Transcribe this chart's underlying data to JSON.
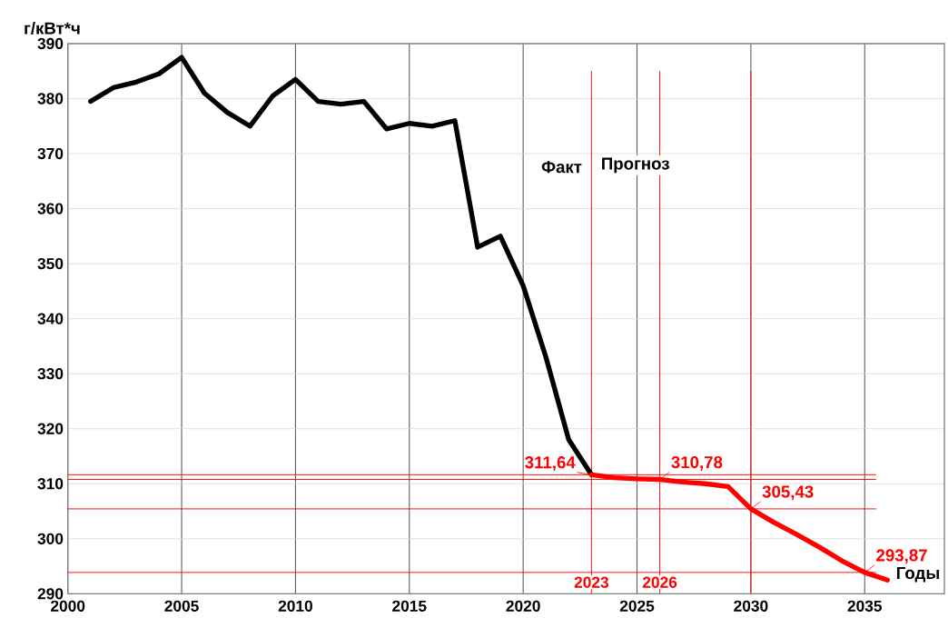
{
  "chart_data": {
    "type": "line",
    "xlabel": "Годы",
    "ylabel": "г/кВт*ч",
    "xlim": [
      2000,
      2038.5
    ],
    "ylim": [
      290,
      390
    ],
    "xticks": [
      2000,
      2005,
      2010,
      2015,
      2020,
      2025,
      2030,
      2035
    ],
    "yticks": [
      290,
      300,
      310,
      320,
      330,
      340,
      350,
      360,
      370,
      380,
      390
    ],
    "grid": true,
    "marker": "none",
    "line_style": "solid",
    "series": [
      {
        "color": "#000000",
        "x": [
          2001,
          2002,
          2003,
          2004,
          2005,
          2006,
          2007,
          2008,
          2009,
          2010,
          2011,
          2012,
          2013,
          2014,
          2015,
          2016,
          2017,
          2018,
          2019,
          2020,
          2021,
          2022,
          2023
        ],
        "values": [
          379.5,
          382,
          383,
          384.5,
          387.5,
          381,
          377.5,
          375,
          380.5,
          383.5,
          379.5,
          379,
          379.5,
          374.5,
          375.5,
          375,
          376,
          353,
          355,
          346,
          333,
          318,
          311.64
        ]
      },
      {
        "color": "#ff0000",
        "x": [
          2023,
          2024,
          2025,
          2026,
          2027,
          2028,
          2029,
          2030,
          2031,
          2032,
          2033,
          2034,
          2035,
          2036
        ],
        "values": [
          311.64,
          311.1,
          310.9,
          310.78,
          310.3,
          310,
          309.5,
          305.43,
          303,
          300.8,
          298.5,
          296,
          293.87,
          292.5
        ],
        "value_labels": [
          "311,64",
          null,
          null,
          "310,78",
          null,
          null,
          null,
          "305,43",
          null,
          null,
          null,
          null,
          "293,87",
          null
        ]
      }
    ],
    "ref_lines": [
      {
        "axis": "x",
        "value": 2023,
        "label": "2023",
        "color": "#ff0000"
      },
      {
        "axis": "x",
        "value": 2026,
        "label": "2026",
        "color": "#ff0000"
      },
      {
        "axis": "x",
        "value": 2030,
        "label": null,
        "color": "#ff0000"
      },
      {
        "axis": "y",
        "value": 311.64,
        "label": null,
        "color": "#ff0000"
      },
      {
        "axis": "y",
        "value": 310.78,
        "label": null,
        "color": "#ff0000"
      },
      {
        "axis": "y",
        "value": 305.43,
        "label": null,
        "color": "#ff0000"
      },
      {
        "axis": "y",
        "value": 293.87,
        "label": null,
        "color": "#ff0000"
      }
    ],
    "annotations": [
      "Факт",
      "Прогноз"
    ]
  }
}
